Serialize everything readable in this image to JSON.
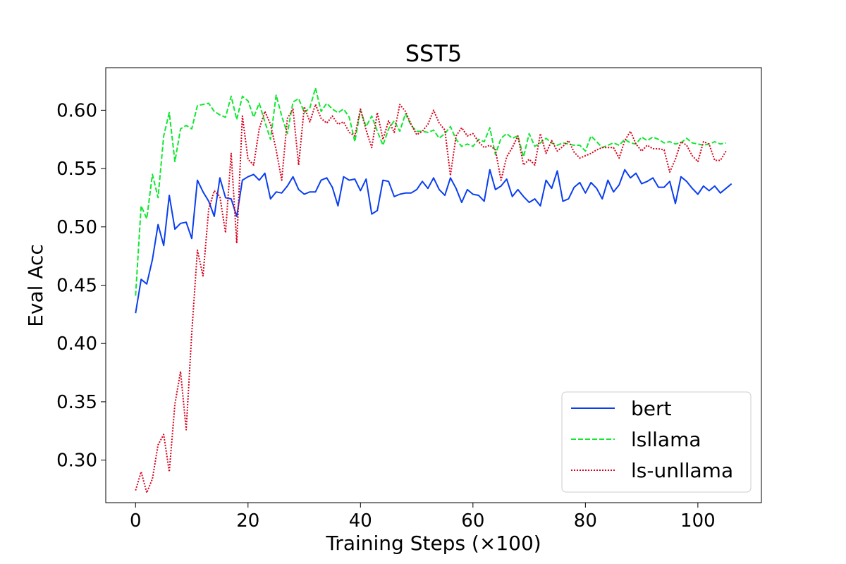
{
  "chart_data": {
    "type": "line",
    "title": "SST5",
    "xlabel": "Training Steps (×100)",
    "ylabel": "Eval Acc",
    "xlim": [
      -5.3,
      111.3
    ],
    "ylim": [
      0.2635,
      0.6365
    ],
    "xticks": [
      0,
      20,
      40,
      60,
      80,
      100
    ],
    "yticks": [
      0.3,
      0.35,
      0.4,
      0.45,
      0.5,
      0.55,
      0.6
    ],
    "legend_position": "lower-right",
    "series": [
      {
        "name": "bert",
        "color": "#0a3ef0",
        "dash": "solid",
        "x": [
          0,
          1,
          2,
          3,
          4,
          5,
          6,
          7,
          8,
          9,
          10,
          11,
          12,
          13,
          14,
          15,
          16,
          17,
          18,
          19,
          20,
          21,
          22,
          23,
          24,
          25,
          26,
          27,
          28,
          29,
          30,
          31,
          32,
          33,
          34,
          35,
          36,
          37,
          38,
          39,
          40,
          41,
          42,
          43,
          44,
          45,
          46,
          47,
          48,
          49,
          50,
          51,
          52,
          53,
          54,
          55,
          56,
          57,
          58,
          59,
          60,
          61,
          62,
          63,
          64,
          65,
          66,
          67,
          68,
          69,
          70,
          71,
          72,
          73,
          74,
          75,
          76,
          77,
          78,
          79,
          80,
          81,
          82,
          83,
          84,
          85,
          86,
          87,
          88,
          89,
          90,
          91,
          92,
          93,
          94,
          95,
          96,
          97,
          98,
          99,
          100,
          101,
          102,
          103,
          104,
          105,
          106
        ],
        "y": [
          0.426,
          0.455,
          0.451,
          0.472,
          0.502,
          0.484,
          0.527,
          0.498,
          0.503,
          0.504,
          0.49,
          0.54,
          0.53,
          0.522,
          0.509,
          0.542,
          0.525,
          0.524,
          0.509,
          0.54,
          0.543,
          0.545,
          0.54,
          0.546,
          0.524,
          0.53,
          0.529,
          0.535,
          0.543,
          0.532,
          0.528,
          0.53,
          0.53,
          0.54,
          0.542,
          0.534,
          0.518,
          0.543,
          0.54,
          0.541,
          0.531,
          0.541,
          0.511,
          0.514,
          0.54,
          0.539,
          0.526,
          0.528,
          0.529,
          0.529,
          0.532,
          0.539,
          0.533,
          0.542,
          0.532,
          0.527,
          0.542,
          0.533,
          0.521,
          0.532,
          0.528,
          0.527,
          0.522,
          0.549,
          0.532,
          0.535,
          0.541,
          0.526,
          0.532,
          0.526,
          0.521,
          0.524,
          0.518,
          0.54,
          0.533,
          0.548,
          0.522,
          0.524,
          0.534,
          0.538,
          0.529,
          0.538,
          0.533,
          0.524,
          0.54,
          0.53,
          0.536,
          0.549,
          0.542,
          0.546,
          0.537,
          0.539,
          0.542,
          0.534,
          0.534,
          0.539,
          0.52,
          0.543,
          0.539,
          0.533,
          0.528,
          0.535,
          0.531,
          0.535,
          0.529,
          0.533,
          0.537
        ]
      },
      {
        "name": "lsllama",
        "color": "#10e830",
        "dash": "dashed",
        "x": [
          0,
          1,
          2,
          3,
          4,
          5,
          6,
          7,
          8,
          9,
          10,
          11,
          12,
          13,
          14,
          15,
          16,
          17,
          18,
          19,
          20,
          21,
          22,
          23,
          24,
          25,
          26,
          27,
          28,
          29,
          30,
          31,
          32,
          33,
          34,
          35,
          36,
          37,
          38,
          39,
          40,
          41,
          42,
          43,
          44,
          45,
          46,
          47,
          48,
          49,
          50,
          51,
          52,
          53,
          54,
          55,
          56,
          57,
          58,
          59,
          60,
          61,
          62,
          63,
          64,
          65,
          66,
          67,
          68,
          69,
          70,
          71,
          72,
          73,
          74,
          75,
          76,
          77,
          78,
          79,
          80,
          81,
          82,
          83,
          84,
          85,
          86,
          87,
          88,
          89,
          90,
          91,
          92,
          93,
          94,
          95,
          96,
          97,
          98,
          99,
          100,
          101,
          102,
          103,
          104,
          105
        ],
        "y": [
          0.441,
          0.518,
          0.507,
          0.545,
          0.525,
          0.578,
          0.598,
          0.556,
          0.584,
          0.587,
          0.584,
          0.604,
          0.605,
          0.606,
          0.599,
          0.596,
          0.594,
          0.612,
          0.592,
          0.612,
          0.608,
          0.594,
          0.606,
          0.59,
          0.575,
          0.613,
          0.595,
          0.58,
          0.607,
          0.61,
          0.598,
          0.602,
          0.619,
          0.599,
          0.606,
          0.601,
          0.598,
          0.601,
          0.594,
          0.573,
          0.6,
          0.586,
          0.595,
          0.582,
          0.57,
          0.584,
          0.591,
          0.582,
          0.597,
          0.587,
          0.582,
          0.582,
          0.581,
          0.583,
          0.576,
          0.58,
          0.586,
          0.575,
          0.569,
          0.571,
          0.569,
          0.575,
          0.573,
          0.585,
          0.562,
          0.576,
          0.58,
          0.576,
          0.578,
          0.56,
          0.58,
          0.569,
          0.572,
          0.576,
          0.572,
          0.57,
          0.572,
          0.571,
          0.57,
          0.57,
          0.565,
          0.578,
          0.573,
          0.568,
          0.57,
          0.572,
          0.57,
          0.575,
          0.572,
          0.571,
          0.577,
          0.574,
          0.577,
          0.575,
          0.572,
          0.573,
          0.571,
          0.572,
          0.576,
          0.572,
          0.571,
          0.57,
          0.571,
          0.573,
          0.571,
          0.572
        ]
      },
      {
        "name": "ls-unllama",
        "color": "#d9001b",
        "dash": "dotted",
        "x": [
          0,
          1,
          2,
          3,
          4,
          5,
          6,
          7,
          8,
          9,
          10,
          11,
          12,
          13,
          14,
          15,
          16,
          17,
          18,
          19,
          20,
          21,
          22,
          23,
          24,
          25,
          26,
          27,
          28,
          29,
          30,
          31,
          32,
          33,
          34,
          35,
          36,
          37,
          38,
          39,
          40,
          41,
          42,
          43,
          44,
          45,
          46,
          47,
          48,
          49,
          50,
          51,
          52,
          53,
          54,
          55,
          56,
          57,
          58,
          59,
          60,
          61,
          62,
          63,
          64,
          65,
          66,
          67,
          68,
          69,
          70,
          71,
          72,
          73,
          74,
          75,
          76,
          77,
          78,
          79,
          80,
          81,
          82,
          83,
          84,
          85,
          86,
          87,
          88,
          89,
          90,
          91,
          92,
          93,
          94,
          95,
          96,
          97,
          98,
          99,
          100,
          101,
          102,
          103,
          104,
          105
        ],
        "y": [
          0.274,
          0.29,
          0.272,
          0.284,
          0.313,
          0.322,
          0.29,
          0.348,
          0.376,
          0.326,
          0.409,
          0.48,
          0.458,
          0.515,
          0.531,
          0.526,
          0.495,
          0.563,
          0.486,
          0.595,
          0.558,
          0.553,
          0.584,
          0.599,
          0.588,
          0.566,
          0.54,
          0.593,
          0.601,
          0.553,
          0.603,
          0.59,
          0.605,
          0.593,
          0.589,
          0.595,
          0.588,
          0.59,
          0.581,
          0.578,
          0.601,
          0.583,
          0.568,
          0.598,
          0.575,
          0.591,
          0.581,
          0.605,
          0.599,
          0.588,
          0.579,
          0.582,
          0.588,
          0.6,
          0.589,
          0.583,
          0.544,
          0.578,
          0.585,
          0.578,
          0.58,
          0.573,
          0.568,
          0.57,
          0.566,
          0.54,
          0.56,
          0.568,
          0.578,
          0.553,
          0.558,
          0.553,
          0.58,
          0.563,
          0.574,
          0.565,
          0.569,
          0.574,
          0.564,
          0.559,
          0.561,
          0.563,
          0.566,
          0.568,
          0.568,
          0.568,
          0.559,
          0.574,
          0.582,
          0.571,
          0.565,
          0.57,
          0.567,
          0.567,
          0.566,
          0.547,
          0.558,
          0.573,
          0.57,
          0.561,
          0.556,
          0.573,
          0.571,
          0.557,
          0.557,
          0.565
        ]
      }
    ]
  }
}
